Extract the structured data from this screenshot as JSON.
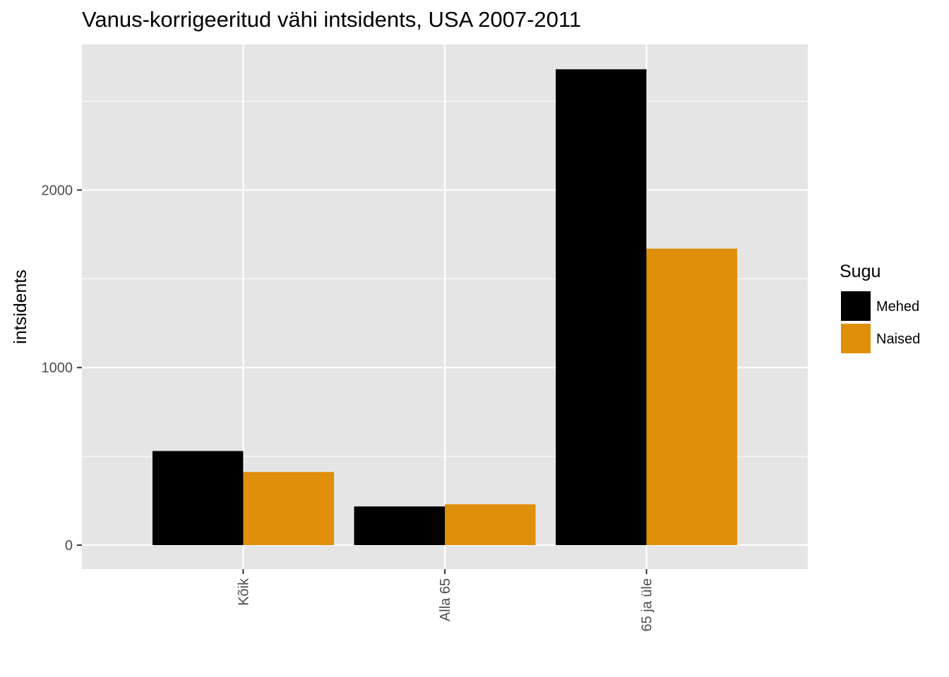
{
  "chart_data": {
    "type": "bar",
    "title": "Vanus-korrigeeritud vähi intsidents, USA 2007-2011",
    "xlabel": "",
    "ylabel": "intsidents",
    "categories": [
      "Kõik",
      "Alla 65",
      "65 ja üle"
    ],
    "series": [
      {
        "name": "Mehed",
        "values": [
          530,
          218,
          2680
        ],
        "color": "#000000"
      },
      {
        "name": "Naised",
        "values": [
          412,
          230,
          1670
        ],
        "color": "#E08F0B"
      }
    ],
    "y_ticks": [
      0,
      1000,
      2000
    ],
    "y_tick_labels": [
      "0",
      "1000",
      "2000"
    ],
    "ylim": [
      -135,
      2820
    ],
    "grid": true,
    "legend": {
      "title": "Sugu",
      "position": "right"
    },
    "colors": {
      "panel_background": "#E5E5E5",
      "grid_line": "#FFFFFF",
      "axis_tick": "#333333"
    }
  }
}
